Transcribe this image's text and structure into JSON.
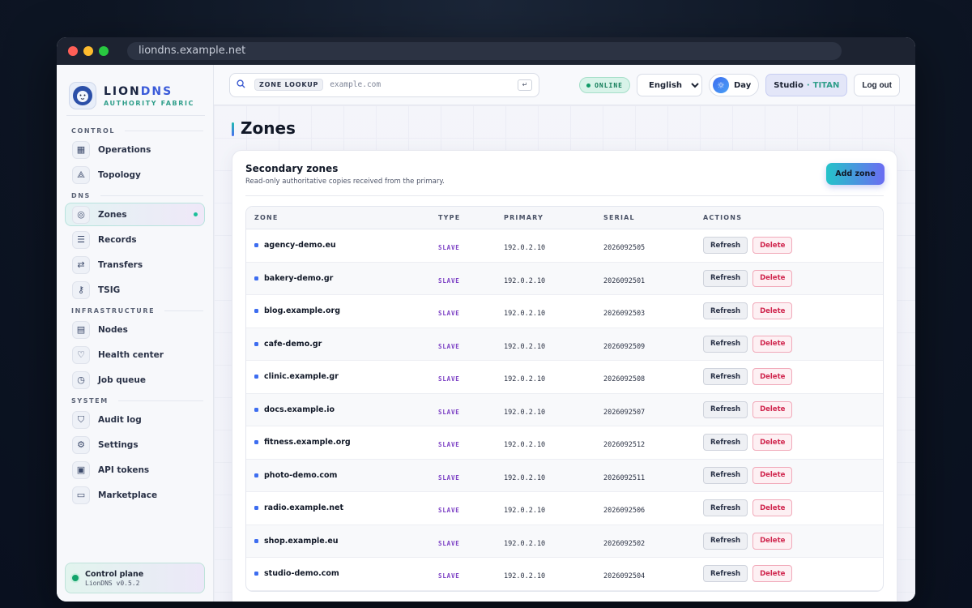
{
  "browser": {
    "url": "liondns.example.net"
  },
  "brand": {
    "name_a": "LION",
    "name_b": "DNS",
    "subtitle": "AUTHORITY FABRIC"
  },
  "sidebar": {
    "sections": [
      {
        "label": "CONTROL",
        "items": [
          {
            "label": "Operations",
            "icon": "grid-icon"
          },
          {
            "label": "Topology",
            "icon": "topology-icon"
          }
        ]
      },
      {
        "label": "DNS",
        "items": [
          {
            "label": "Zones",
            "icon": "globe-icon",
            "active": true
          },
          {
            "label": "Records",
            "icon": "list-icon"
          },
          {
            "label": "Transfers",
            "icon": "transfer-icon"
          },
          {
            "label": "TSIG",
            "icon": "key-icon"
          }
        ]
      },
      {
        "label": "INFRASTRUCTURE",
        "items": [
          {
            "label": "Nodes",
            "icon": "server-icon"
          },
          {
            "label": "Health center",
            "icon": "heart-icon"
          },
          {
            "label": "Job queue",
            "icon": "clock-icon"
          }
        ]
      },
      {
        "label": "SYSTEM",
        "items": [
          {
            "label": "Audit log",
            "icon": "shield-icon"
          },
          {
            "label": "Settings",
            "icon": "gear-icon"
          },
          {
            "label": "API tokens",
            "icon": "briefcase-icon"
          },
          {
            "label": "Marketplace",
            "icon": "store-icon"
          }
        ]
      }
    ],
    "control_plane": {
      "title": "Control plane",
      "version": "LionDNS v0.5.2"
    }
  },
  "topbar": {
    "search_chip": "ZONE LOOKUP",
    "search_placeholder": "example.com",
    "status": "ONLINE",
    "language": "English",
    "language_options": [
      "English"
    ],
    "theme": "Day",
    "workspace": "Studio",
    "plan": "TITAN",
    "logout": "Log out"
  },
  "page": {
    "title": "Zones"
  },
  "card": {
    "title": "Secondary zones",
    "subtitle": "Read-only authoritative copies received from the primary.",
    "add_button": "Add zone",
    "columns": [
      "ZONE",
      "TYPE",
      "PRIMARY",
      "SERIAL",
      "ACTIONS"
    ],
    "refresh_label": "Refresh",
    "delete_label": "Delete",
    "rows": [
      {
        "zone": "agency-demo.eu",
        "type": "SLAVE",
        "primary": "192.0.2.10",
        "serial": "2026092505"
      },
      {
        "zone": "bakery-demo.gr",
        "type": "SLAVE",
        "primary": "192.0.2.10",
        "serial": "2026092501"
      },
      {
        "zone": "blog.example.org",
        "type": "SLAVE",
        "primary": "192.0.2.10",
        "serial": "2026092503"
      },
      {
        "zone": "cafe-demo.gr",
        "type": "SLAVE",
        "primary": "192.0.2.10",
        "serial": "2026092509"
      },
      {
        "zone": "clinic.example.gr",
        "type": "SLAVE",
        "primary": "192.0.2.10",
        "serial": "2026092508"
      },
      {
        "zone": "docs.example.io",
        "type": "SLAVE",
        "primary": "192.0.2.10",
        "serial": "2026092507"
      },
      {
        "zone": "fitness.example.org",
        "type": "SLAVE",
        "primary": "192.0.2.10",
        "serial": "2026092512"
      },
      {
        "zone": "photo-demo.com",
        "type": "SLAVE",
        "primary": "192.0.2.10",
        "serial": "2026092511"
      },
      {
        "zone": "radio.example.net",
        "type": "SLAVE",
        "primary": "192.0.2.10",
        "serial": "2026092506"
      },
      {
        "zone": "shop.example.eu",
        "type": "SLAVE",
        "primary": "192.0.2.10",
        "serial": "2026092502"
      },
      {
        "zone": "studio-demo.com",
        "type": "SLAVE",
        "primary": "192.0.2.10",
        "serial": "2026092504"
      }
    ]
  }
}
